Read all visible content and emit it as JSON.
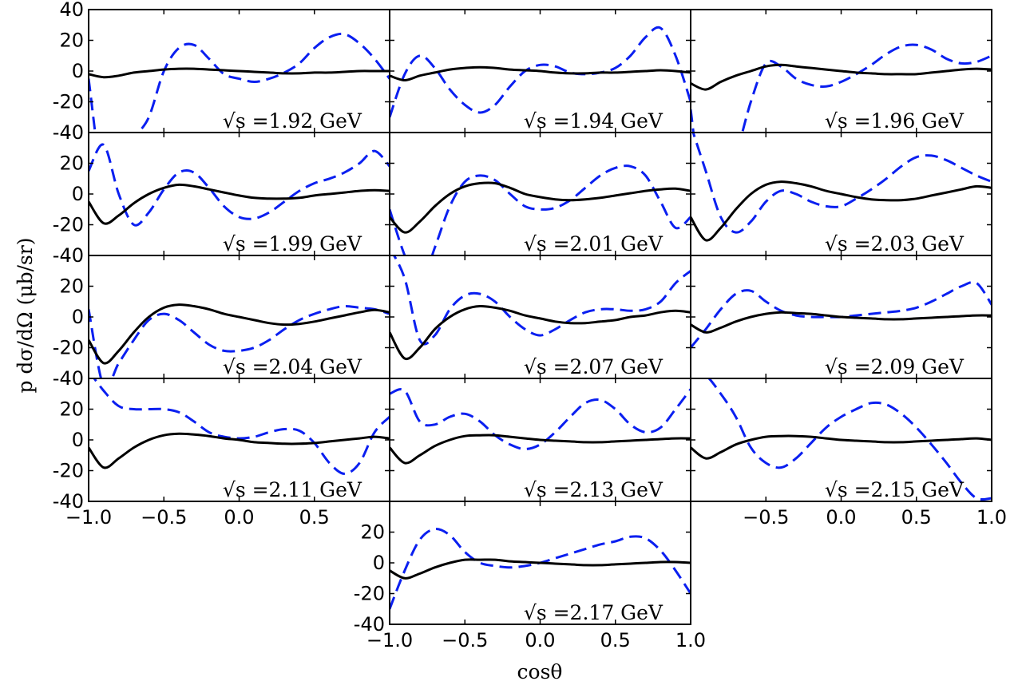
{
  "chart_data": {
    "type": "line",
    "xlabel": "cosθ",
    "ylabel": "p dσ/dΩ  (μb/sr)",
    "xlim": [
      -1.0,
      1.0
    ],
    "ylim": [
      -40,
      40
    ],
    "x_ticks": [
      "−1.0",
      "−0.5",
      "0.0",
      "0.5",
      "1.0"
    ],
    "x": [
      -1.0,
      -0.9,
      -0.8,
      -0.7,
      -0.6,
      -0.5,
      -0.4,
      -0.3,
      -0.2,
      -0.1,
      0.0,
      0.1,
      0.2,
      0.3,
      0.4,
      0.5,
      0.6,
      0.7,
      0.8,
      0.9,
      1.0
    ],
    "panels": [
      {
        "title": "√s =1.92 GeV",
        "solid": [
          -2,
          -4,
          -3,
          -1,
          0,
          1,
          1.5,
          1.5,
          1,
          0.5,
          0,
          -0.5,
          -1,
          -1.5,
          -1.5,
          -1,
          -1,
          -0.5,
          0,
          0,
          0
        ],
        "dashed": [
          -5,
          -75,
          -70,
          -45,
          -30,
          0,
          15,
          17,
          8,
          -2,
          -5,
          -7,
          -5,
          -1,
          5,
          15,
          22,
          24,
          18,
          8,
          -5
        ]
      },
      {
        "title": "√s =1.94 GeV",
        "solid": [
          -3,
          -6,
          -3,
          -1,
          1,
          2,
          2.5,
          2,
          1,
          0.5,
          0,
          -1,
          -1.5,
          -1.5,
          -1,
          -1,
          -0.5,
          0,
          0.5,
          0,
          -1
        ],
        "dashed": [
          -30,
          -2,
          10,
          2,
          -12,
          -22,
          -27,
          -22,
          -10,
          0,
          4,
          3,
          -1,
          -2,
          -1,
          2,
          10,
          22,
          28,
          10,
          -20
        ]
      },
      {
        "title": "√s =1.96 GeV",
        "solid": [
          -8,
          -12,
          -7,
          -3,
          0,
          3,
          4,
          3,
          2,
          1,
          0,
          -1,
          -1.5,
          -2,
          -2,
          -2,
          -1,
          0,
          1,
          1.5,
          1
        ],
        "dashed": [
          -25,
          -95,
          -80,
          -55,
          -20,
          5,
          3,
          -5,
          -9,
          -10,
          -7,
          -2,
          4,
          11,
          16,
          17,
          14,
          8,
          5,
          6,
          10
        ]
      },
      {
        "title": "√s =1.99 GeV",
        "solid": [
          -5,
          -19,
          -14,
          -6,
          0,
          4,
          6,
          5,
          3,
          1,
          -1,
          -2.5,
          -3,
          -3,
          -2.5,
          -1,
          0,
          1,
          2,
          2.5,
          2
        ],
        "dashed": [
          15,
          32,
          0,
          -20,
          -12,
          3,
          14,
          14,
          4,
          -8,
          -15,
          -16,
          -12,
          -5,
          2,
          7,
          10,
          14,
          20,
          28,
          18
        ]
      },
      {
        "title": "√s =2.01 GeV",
        "solid": [
          -15,
          -25,
          -18,
          -8,
          0,
          5,
          7,
          7,
          4,
          0,
          -2,
          -3.5,
          -4,
          -3.5,
          -2.5,
          -1,
          0.5,
          2,
          3,
          3.5,
          2
        ],
        "dashed": [
          -10,
          -40,
          -60,
          -35,
          -8,
          8,
          12,
          9,
          0,
          -8,
          -10,
          -9,
          -4,
          4,
          12,
          17,
          18,
          12,
          -5,
          -22,
          -15
        ]
      },
      {
        "title": "√s =2.03 GeV",
        "solid": [
          -15,
          -30,
          -22,
          -10,
          0,
          6,
          8,
          7,
          5,
          2,
          0,
          -2,
          -3.5,
          -4,
          -4,
          -3,
          -1,
          1,
          3,
          5,
          4
        ],
        "dashed": [
          45,
          15,
          -15,
          -25,
          -18,
          -5,
          2,
          0,
          -5,
          -8,
          -8,
          -3,
          3,
          10,
          18,
          24,
          25,
          22,
          17,
          12,
          8
        ]
      },
      {
        "title": "√s =2.04 GeV",
        "solid": [
          -15,
          -30,
          -22,
          -10,
          0,
          6,
          8,
          7,
          5,
          2,
          0,
          -2,
          -4,
          -5,
          -4.5,
          -3,
          -1,
          1,
          3,
          4.5,
          3
        ],
        "dashed": [
          5,
          -45,
          -30,
          -15,
          -2,
          2,
          -2,
          -10,
          -18,
          -22,
          -22,
          -20,
          -15,
          -8,
          -2,
          2,
          5,
          7,
          6,
          5,
          2
        ]
      },
      {
        "title": "√s =2.07 GeV",
        "solid": [
          -10,
          -27,
          -20,
          -8,
          0,
          5,
          7,
          6,
          4,
          1,
          -1,
          -3,
          -4,
          -4,
          -3,
          -2,
          0,
          1,
          3,
          4,
          3
        ],
        "dashed": [
          45,
          25,
          -15,
          -12,
          5,
          14,
          15,
          10,
          0,
          -8,
          -12,
          -8,
          -2,
          3,
          5,
          5,
          4,
          5,
          10,
          22,
          30
        ]
      },
      {
        "title": "√s =2.09 GeV",
        "solid": [
          -5,
          -10,
          -7,
          -3,
          0,
          2,
          3,
          2.5,
          2,
          1,
          0,
          -0.5,
          -1,
          -1.5,
          -1.5,
          -1,
          -0.5,
          0,
          0.5,
          1,
          1
        ],
        "dashed": [
          -20,
          -8,
          5,
          15,
          17,
          10,
          4,
          1,
          0,
          0,
          0,
          1,
          2,
          3,
          4,
          6,
          10,
          15,
          20,
          22,
          8
        ]
      },
      {
        "title": "√s =2.11 GeV",
        "solid": [
          -5,
          -18,
          -12,
          -5,
          0,
          3,
          4,
          3.5,
          2.5,
          1,
          0,
          -1.5,
          -2,
          -2.5,
          -2.5,
          -2,
          -1,
          0,
          1,
          2,
          1
        ],
        "dashed": [
          45,
          32,
          22,
          20,
          20,
          20,
          18,
          12,
          5,
          2,
          1,
          2,
          5,
          7,
          6,
          -2,
          -15,
          -22,
          -15,
          5,
          15
        ]
      },
      {
        "title": "√s =2.13 GeV",
        "solid": [
          -5,
          -15,
          -10,
          -4,
          0,
          2.5,
          3,
          3,
          2,
          1,
          0,
          -0.5,
          -1,
          -1.5,
          -1.5,
          -1,
          -0.5,
          0,
          0.5,
          1,
          1
        ],
        "dashed": [
          30,
          32,
          12,
          10,
          15,
          17,
          12,
          3,
          -3,
          -6,
          -3,
          5,
          15,
          24,
          26,
          20,
          10,
          5,
          8,
          20,
          33
        ]
      },
      {
        "title": "√s =2.15 GeV",
        "solid": [
          -5,
          -12,
          -8,
          -3,
          0,
          2,
          2.5,
          2.5,
          2,
          1,
          0,
          -0.5,
          -1,
          -1.5,
          -1.5,
          -1,
          -0.5,
          0,
          0.5,
          1,
          0
        ],
        "dashed": [
          45,
          42,
          30,
          15,
          -5,
          -15,
          -18,
          -12,
          -2,
          8,
          15,
          20,
          24,
          23,
          17,
          8,
          -3,
          -15,
          -28,
          -38,
          -38
        ]
      },
      {
        "title": "√s =2.17 GeV",
        "solid": [
          -5,
          -10,
          -7,
          -3,
          0,
          2,
          2,
          2,
          1,
          0.5,
          0,
          -0.5,
          -1,
          -1.5,
          -1.5,
          -1,
          -0.5,
          0,
          0.5,
          0.5,
          0
        ],
        "dashed": [
          -30,
          -5,
          15,
          22,
          18,
          7,
          0,
          -2,
          -3,
          -2,
          0,
          3,
          6,
          9,
          12,
          14,
          17,
          16,
          8,
          -5,
          -20
        ]
      }
    ],
    "grid": false,
    "legend": "none",
    "colors": {
      "solid": "#000000",
      "dashed": "#0a1ff0"
    }
  }
}
